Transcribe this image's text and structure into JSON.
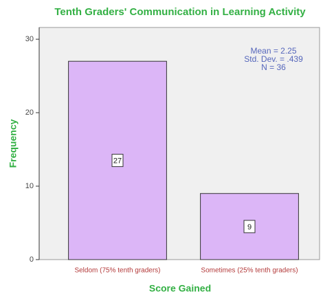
{
  "chart_data": {
    "type": "bar",
    "title": "Tenth Graders' Communication in Learning Activity",
    "x_label": "Score Gained",
    "y_label": "Frequency",
    "categories": [
      "Seldom (75% tenth graders)",
      "Sometimes (25% tenth graders)"
    ],
    "values": [
      27,
      9
    ],
    "color": "#dcb6f7",
    "ylim": [
      0,
      31.6
    ],
    "yticks": [
      0,
      10,
      20,
      30
    ],
    "annotations": [
      "Mean = 2.25",
      "Std. Dev. = .439",
      "N = 36"
    ]
  }
}
